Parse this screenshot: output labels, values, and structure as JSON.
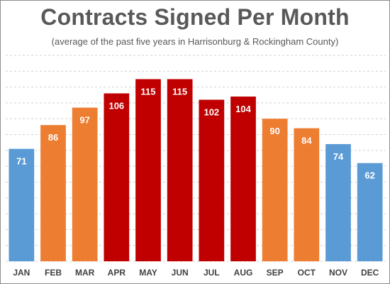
{
  "chart_data": {
    "type": "bar",
    "title": "Contracts Signed Per Month",
    "subtitle": "(average of the past five years in Harrisonburg & Rockingham County)",
    "categories": [
      "JAN",
      "FEB",
      "MAR",
      "APR",
      "MAY",
      "JUN",
      "JUL",
      "AUG",
      "SEP",
      "OCT",
      "NOV",
      "DEC"
    ],
    "values": [
      71,
      86,
      97,
      106,
      115,
      115,
      102,
      104,
      90,
      84,
      74,
      62
    ],
    "bar_colors": [
      "#5b9bd5",
      "#ed7d31",
      "#ed7d31",
      "#c00000",
      "#c00000",
      "#c00000",
      "#c00000",
      "#c00000",
      "#ed7d31",
      "#ed7d31",
      "#5b9bd5",
      "#5b9bd5"
    ],
    "data_labels": true,
    "xlabel": "",
    "ylabel": "",
    "ylim": [
      0,
      130
    ],
    "y_tick_step": 10,
    "y_tick_labels_shown": false,
    "grid": "horizontal-dashed",
    "legend": "none"
  }
}
